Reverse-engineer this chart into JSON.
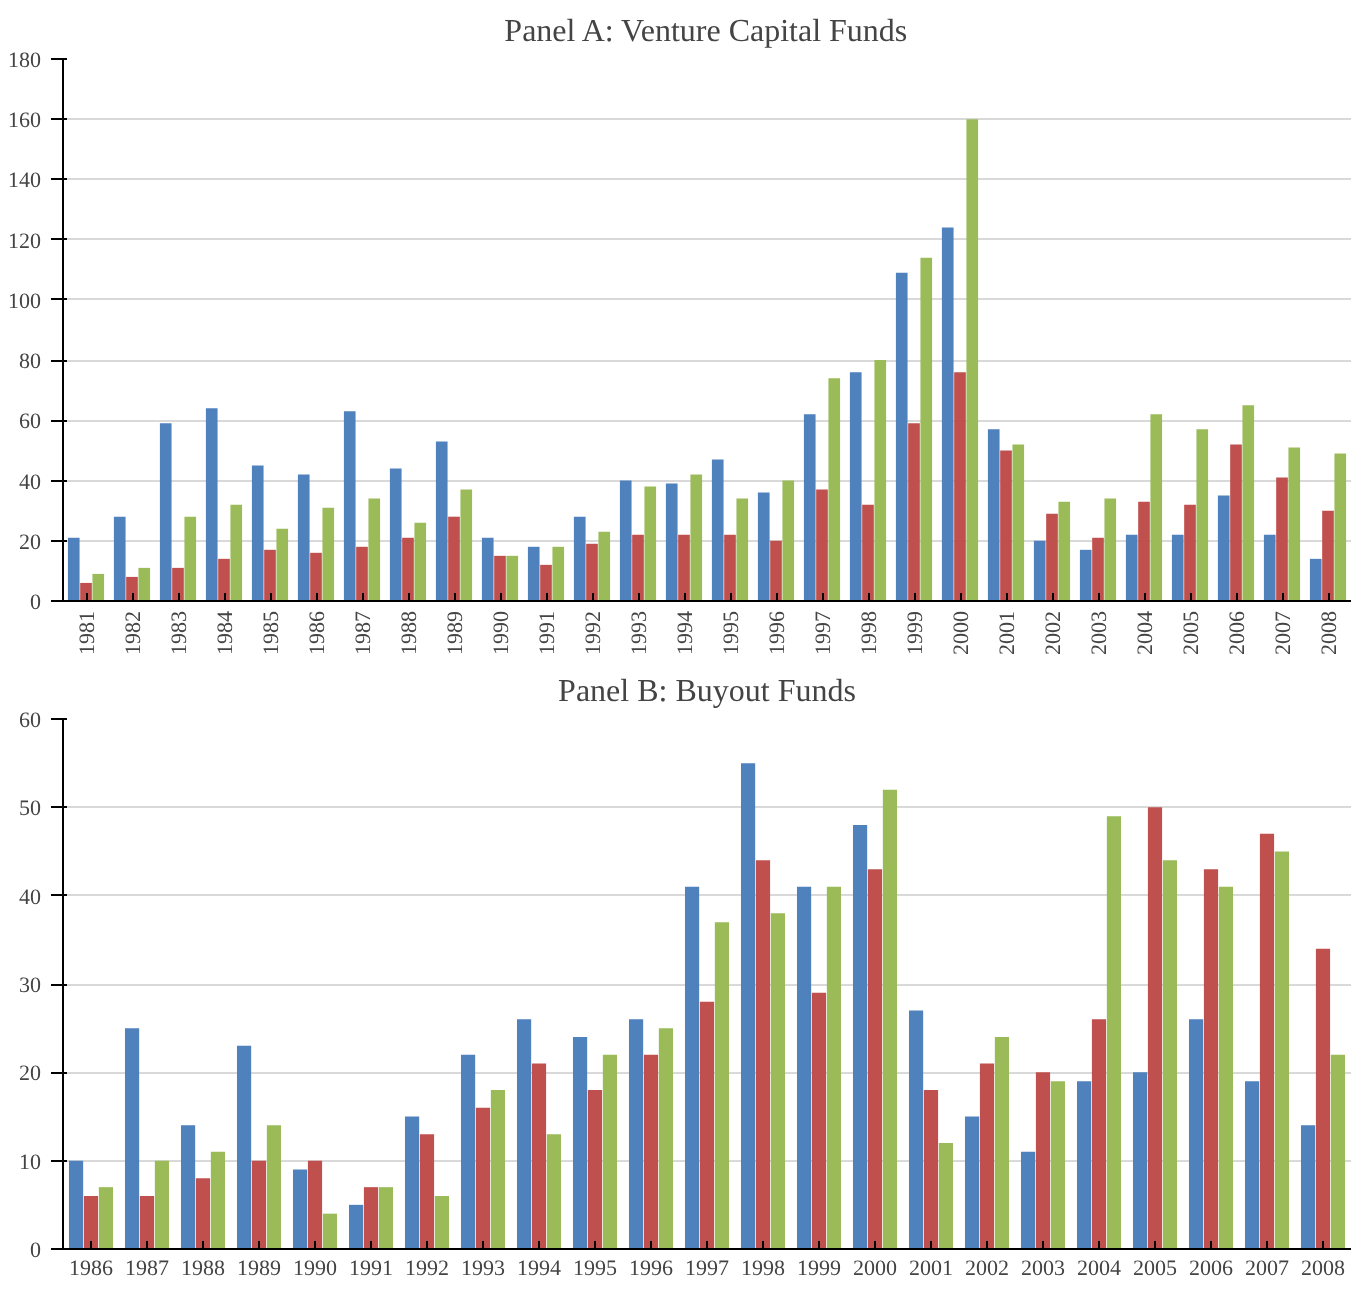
{
  "chart_data": [
    {
      "type": "bar",
      "title": "Panel A: Venture Capital Funds",
      "categories": [
        "1981",
        "1982",
        "1983",
        "1984",
        "1985",
        "1986",
        "1987",
        "1988",
        "1989",
        "1990",
        "1991",
        "1992",
        "1993",
        "1994",
        "1995",
        "1996",
        "1997",
        "1998",
        "1999",
        "2000",
        "2001",
        "2002",
        "2003",
        "2004",
        "2005",
        "2006",
        "2007",
        "2008"
      ],
      "series": [
        {
          "color": "#4f81bd",
          "values": [
            21,
            28,
            59,
            64,
            45,
            42,
            63,
            44,
            53,
            21,
            18,
            28,
            40,
            39,
            47,
            36,
            62,
            76,
            109,
            124,
            57,
            20,
            17,
            22,
            22,
            35,
            22,
            14
          ]
        },
        {
          "color": "#c0504d",
          "values": [
            6,
            8,
            11,
            14,
            17,
            16,
            18,
            21,
            28,
            15,
            12,
            19,
            22,
            22,
            22,
            20,
            37,
            32,
            59,
            76,
            50,
            29,
            21,
            33,
            32,
            52,
            41,
            30
          ]
        },
        {
          "color": "#9bbb59",
          "values": [
            9,
            11,
            28,
            32,
            24,
            31,
            34,
            26,
            37,
            15,
            18,
            23,
            38,
            42,
            34,
            40,
            74,
            80,
            114,
            160,
            52,
            33,
            34,
            62,
            57,
            65,
            51,
            49
          ]
        }
      ],
      "ylim": [
        0,
        180
      ],
      "yticks": [
        0,
        20,
        40,
        60,
        80,
        100,
        120,
        140,
        160,
        180
      ],
      "grid": "y"
    },
    {
      "type": "bar",
      "title": "Panel B: Buyout Funds",
      "categories": [
        "1986",
        "1987",
        "1988",
        "1989",
        "1990",
        "1991",
        "1992",
        "1993",
        "1994",
        "1995",
        "1996",
        "1997",
        "1998",
        "1999",
        "2000",
        "2001",
        "2002",
        "2003",
        "2004",
        "2005",
        "2006",
        "2007",
        "2008"
      ],
      "series": [
        {
          "color": "#4f81bd",
          "values": [
            10,
            25,
            14,
            23,
            9,
            5,
            15,
            22,
            26,
            24,
            26,
            41,
            55,
            41,
            48,
            27,
            15,
            11,
            19,
            20,
            26,
            19,
            14
          ]
        },
        {
          "color": "#c0504d",
          "values": [
            6,
            6,
            8,
            10,
            10,
            7,
            13,
            16,
            21,
            18,
            22,
            28,
            44,
            29,
            43,
            18,
            21,
            20,
            26,
            50,
            43,
            47,
            34
          ]
        },
        {
          "color": "#9bbb59",
          "values": [
            7,
            10,
            11,
            14,
            4,
            7,
            6,
            18,
            13,
            22,
            25,
            37,
            38,
            41,
            52,
            12,
            24,
            19,
            49,
            44,
            41,
            45,
            22
          ]
        }
      ],
      "ylim": [
        0,
        60
      ],
      "yticks": [
        0,
        10,
        20,
        30,
        40,
        50,
        60
      ],
      "grid": "y"
    }
  ]
}
